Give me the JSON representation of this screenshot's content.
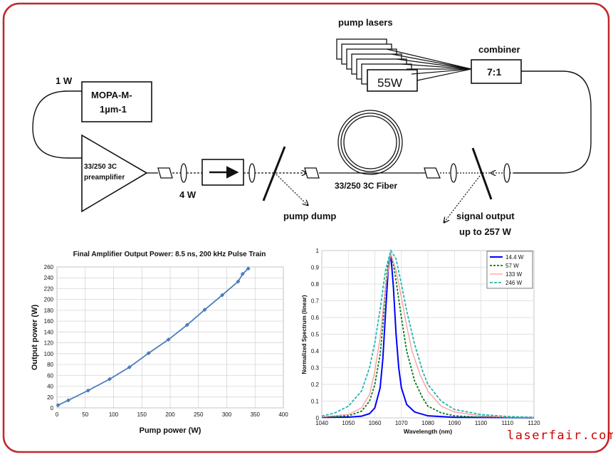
{
  "diagram": {
    "pump_lasers_label": "pump lasers",
    "pump_power_label": "55W",
    "combiner_label": "combiner",
    "combiner_ratio": "7:1",
    "seed_power_label": "1 W",
    "seed_name_line1": "MOPA-M-",
    "seed_name_line2": "1µm-1",
    "preamp_line1": "33/250 3C",
    "preamp_line2": "preamplifier",
    "preamp_output_label": "4 W",
    "pump_dump_label": "pump dump",
    "fiber_label": "33/250 3C Fiber",
    "signal_output_line1": "signal output",
    "signal_output_line2": "up to 257 W",
    "border_color": "#c0272d",
    "line_color": "#111111"
  },
  "watermark": "laserfair.com",
  "watermark_color": "#cc0000",
  "chart_data": [
    {
      "type": "line",
      "title": "Final Amplifier Output Power: 8.5 ns, 200 kHz Pulse Train",
      "xlabel": "Pump power (W)",
      "ylabel": "Output power (W)",
      "xlim": [
        0,
        400
      ],
      "ylim": [
        0,
        260
      ],
      "xticks": [
        0,
        50,
        100,
        150,
        200,
        250,
        300,
        350,
        400
      ],
      "yticks": [
        0,
        20,
        40,
        60,
        80,
        100,
        120,
        140,
        160,
        180,
        200,
        220,
        240,
        260
      ],
      "grid": true,
      "color": "#4a7ebb",
      "x": [
        2,
        20,
        55,
        93,
        128,
        162,
        197,
        230,
        261,
        292,
        320,
        328,
        338
      ],
      "y": [
        5,
        14,
        32,
        53,
        75,
        101,
        126,
        153,
        181,
        208,
        233,
        247,
        257
      ]
    },
    {
      "type": "line",
      "xlabel": "Wavelength (nm)",
      "ylabel": "Normalized Spectrum (linear)",
      "xlim": [
        1040,
        1120
      ],
      "ylim": [
        0,
        1
      ],
      "xticks": [
        1040,
        1050,
        1060,
        1070,
        1080,
        1090,
        1100,
        1110,
        1120
      ],
      "yticks": [
        0,
        0.1,
        0.2,
        0.3,
        0.4,
        0.5,
        0.6,
        0.7,
        0.8,
        0.9,
        1
      ],
      "grid": true,
      "legend_position": "top-right",
      "series": [
        {
          "name": "14.4 W",
          "color": "#0000ff",
          "dash": "",
          "width": 2,
          "x": [
            1040,
            1050,
            1055,
            1058,
            1060,
            1062,
            1063,
            1064,
            1065,
            1066,
            1067,
            1068,
            1069,
            1070,
            1072,
            1075,
            1080,
            1090,
            1120
          ],
          "y": [
            0.003,
            0.004,
            0.01,
            0.025,
            0.06,
            0.18,
            0.35,
            0.62,
            0.88,
            0.98,
            0.78,
            0.5,
            0.3,
            0.18,
            0.08,
            0.035,
            0.012,
            0.003,
            0.001
          ]
        },
        {
          "name": "57 W",
          "color": "#007a1a",
          "dash": "3,2",
          "width": 1.8,
          "x": [
            1040,
            1050,
            1055,
            1058,
            1060,
            1062,
            1063,
            1064,
            1065,
            1066,
            1067,
            1068,
            1070,
            1072,
            1075,
            1078,
            1080,
            1085,
            1090,
            1100,
            1120
          ],
          "y": [
            0.004,
            0.012,
            0.04,
            0.1,
            0.2,
            0.38,
            0.55,
            0.78,
            0.92,
            0.97,
            0.92,
            0.82,
            0.6,
            0.4,
            0.22,
            0.12,
            0.07,
            0.03,
            0.012,
            0.004,
            0.001
          ]
        },
        {
          "name": "133 W",
          "color": "#ff9a9a",
          "dash": "",
          "width": 1.3,
          "x": [
            1040,
            1050,
            1055,
            1058,
            1060,
            1062,
            1064,
            1066,
            1068,
            1070,
            1072,
            1074,
            1077,
            1080,
            1085,
            1090,
            1100,
            1110,
            1120
          ],
          "y": [
            0.006,
            0.02,
            0.06,
            0.14,
            0.28,
            0.48,
            0.78,
            0.98,
            0.88,
            0.72,
            0.55,
            0.4,
            0.26,
            0.16,
            0.07,
            0.035,
            0.012,
            0.005,
            0.002
          ]
        },
        {
          "name": "246 W",
          "color": "#23b8b0",
          "dash": "4,2",
          "width": 1.8,
          "x": [
            1040,
            1045,
            1050,
            1055,
            1058,
            1060,
            1062,
            1064,
            1066,
            1068,
            1070,
            1072,
            1075,
            1078,
            1080,
            1085,
            1090,
            1100,
            1110,
            1120
          ],
          "y": [
            0.01,
            0.03,
            0.07,
            0.16,
            0.3,
            0.45,
            0.65,
            0.88,
            1.0,
            0.95,
            0.8,
            0.64,
            0.44,
            0.28,
            0.2,
            0.1,
            0.05,
            0.02,
            0.008,
            0.003
          ]
        }
      ]
    }
  ]
}
